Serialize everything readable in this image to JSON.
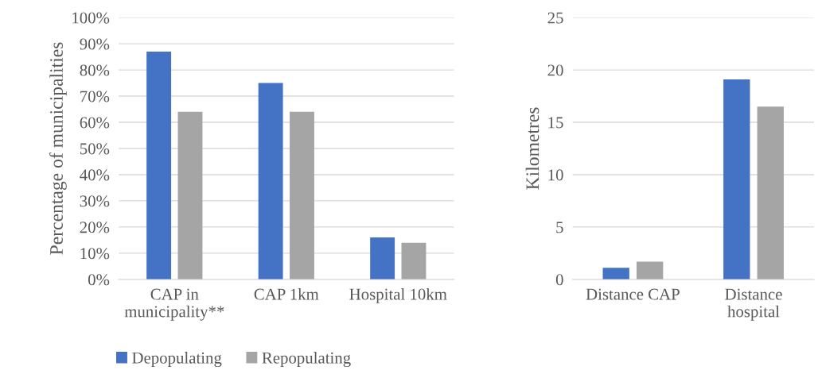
{
  "chart_data": [
    {
      "type": "bar",
      "ylabel": "Percentage of municipalities",
      "categories": [
        "CAP in\nmunicipality**",
        "CAP 1km",
        "Hospital 10km"
      ],
      "series": [
        {
          "name": "Depopulating",
          "color": "#4472c4",
          "values": [
            87,
            75,
            16
          ]
        },
        {
          "name": "Repopulating",
          "color": "#a5a5a5",
          "values": [
            64,
            64,
            14
          ]
        }
      ],
      "ylim": [
        0,
        100
      ],
      "yticks": [
        {
          "value": 0,
          "label": "0%"
        },
        {
          "value": 10,
          "label": "10%"
        },
        {
          "value": 20,
          "label": "20%"
        },
        {
          "value": 30,
          "label": "30%"
        },
        {
          "value": 40,
          "label": "40%"
        },
        {
          "value": 50,
          "label": "50%"
        },
        {
          "value": 60,
          "label": "60%"
        },
        {
          "value": 70,
          "label": "70%"
        },
        {
          "value": 80,
          "label": "80%"
        },
        {
          "value": 90,
          "label": "90%"
        },
        {
          "value": 100,
          "label": "100%"
        }
      ],
      "grid": "y",
      "legend": "bottom left"
    },
    {
      "type": "bar",
      "ylabel": "Kilometres",
      "categories": [
        "Distance CAP",
        "Distance\nhospital"
      ],
      "series": [
        {
          "color": "#4472c4",
          "values": [
            1.1,
            19.1
          ]
        },
        {
          "color": "#a5a5a5",
          "values": [
            1.7,
            16.5
          ]
        }
      ],
      "ylim": [
        0,
        25
      ],
      "yticks": [
        0,
        5,
        10,
        15,
        20,
        25
      ],
      "grid": "y"
    }
  ]
}
